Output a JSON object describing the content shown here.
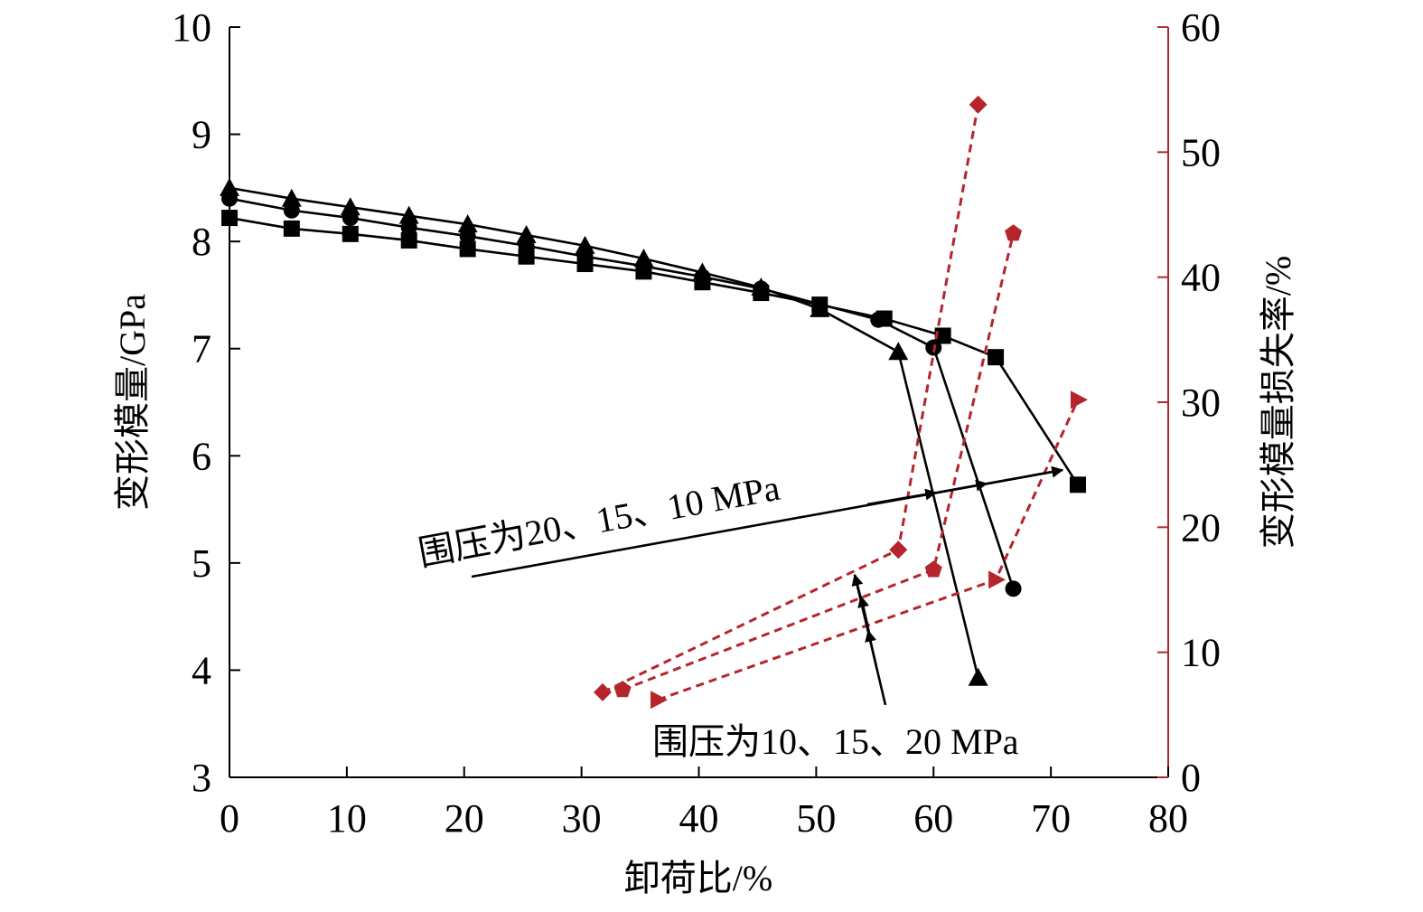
{
  "chart_data": {
    "type": "line",
    "xlabel": "卸荷比/%",
    "ylabel": "变形模量/GPa",
    "y2label": "变形模量损失率/%",
    "xlim": [
      0,
      80
    ],
    "ylim": [
      3,
      10
    ],
    "y2lim": [
      0,
      60
    ],
    "xticks": [
      "0",
      "10",
      "20",
      "30",
      "40",
      "50",
      "60",
      "70",
      "80"
    ],
    "yticks": [
      "3",
      "4",
      "5",
      "6",
      "7",
      "8",
      "9",
      "10"
    ],
    "y2ticks": [
      "0",
      "10",
      "20",
      "30",
      "40",
      "50",
      "60"
    ],
    "grid": false,
    "colors": {
      "modulus": "#000000",
      "loss": "#b5252c"
    },
    "series": [
      {
        "axis": "left",
        "marker": "square",
        "style": "solid",
        "x": [
          0,
          5.3,
          10.3,
          15.3,
          20.3,
          25.3,
          30.3,
          35.3,
          40.3,
          45.3,
          50.3,
          55.8,
          60.8,
          65.3,
          72.3
        ],
        "y": [
          8.22,
          8.12,
          8.07,
          8.01,
          7.93,
          7.86,
          7.79,
          7.72,
          7.62,
          7.52,
          7.41,
          7.28,
          7.12,
          6.92,
          5.73
        ]
      },
      {
        "axis": "left",
        "marker": "circle",
        "style": "solid",
        "x": [
          0,
          5.3,
          10.3,
          15.3,
          20.3,
          25.3,
          30.3,
          35.3,
          40.3,
          45.3,
          55.3,
          60.0,
          66.8
        ],
        "y": [
          8.4,
          8.29,
          8.22,
          8.13,
          8.05,
          7.96,
          7.86,
          7.77,
          7.67,
          7.56,
          7.27,
          7.01,
          4.76
        ]
      },
      {
        "axis": "left",
        "marker": "triangle",
        "style": "solid",
        "x": [
          0,
          5.3,
          10.3,
          15.3,
          20.3,
          25.3,
          30.3,
          35.3,
          40.3,
          45.3,
          50.3,
          57.0,
          63.8
        ],
        "y": [
          8.5,
          8.4,
          8.32,
          8.24,
          8.16,
          8.06,
          7.96,
          7.84,
          7.71,
          7.57,
          7.37,
          6.97,
          3.93
        ]
      },
      {
        "axis": "right",
        "marker": "diamond",
        "style": "dashed",
        "x": [
          31.8,
          57.0,
          63.8
        ],
        "y": [
          6.8,
          18.2,
          53.8
        ]
      },
      {
        "axis": "right",
        "marker": "pentagon",
        "style": "dashed",
        "x": [
          33.5,
          60.0,
          66.8
        ],
        "y": [
          7.0,
          16.6,
          43.5
        ]
      },
      {
        "axis": "right",
        "marker": "triangle-right",
        "style": "dashed",
        "x": [
          36.5,
          65.3,
          72.3
        ],
        "y": [
          6.2,
          15.8,
          30.2
        ]
      }
    ],
    "annotations": [
      {
        "text": "围压为20、15、10 MPa"
      },
      {
        "text": "围压为10、15、20 MPa"
      }
    ]
  }
}
